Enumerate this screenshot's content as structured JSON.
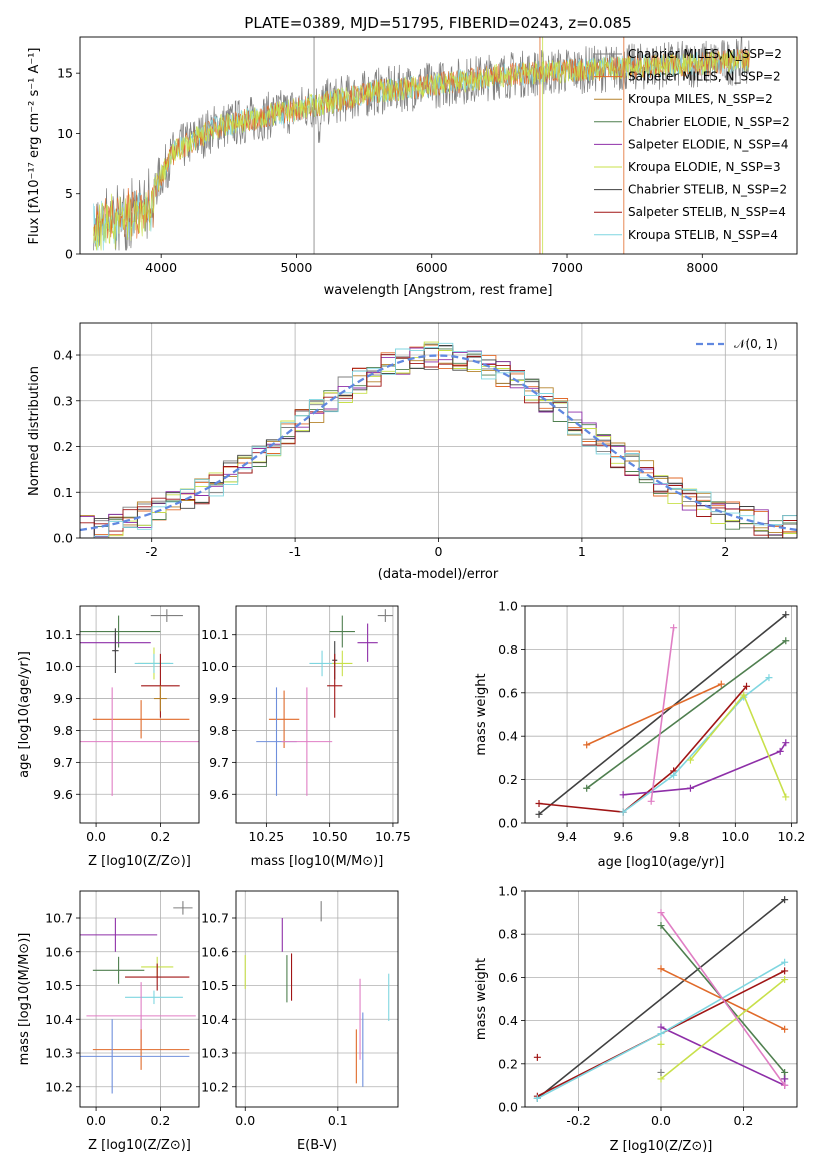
{
  "title": "PLATE=0389, MJD=51795, FIBERID=0243, z=0.085",
  "colors": {
    "chabrier_miles": "#7f7f7f",
    "salpeter_miles": "#e06a2a",
    "kroupa_miles": "#b5822b",
    "chabrier_elodie": "#4f7f4f",
    "salpeter_elodie": "#8e2fa8",
    "kroupa_elodie": "#c8e04a",
    "chabrier_stelib": "#404040",
    "salpeter_stelib": "#a01515",
    "kroupa_stelib": "#7fd6e0",
    "extra_blue": "#6f8fdc",
    "extra_pink": "#e07ec4"
  },
  "legend_spectrum": [
    "Chabrier MILES, N_SSP=2",
    "Salpeter MILES, N_SSP=2",
    "Kroupa MILES, N_SSP=2",
    "Chabrier ELODIE, N_SSP=2",
    "Salpeter ELODIE, N_SSP=4",
    "Kroupa ELODIE, N_SSP=3",
    "Chabrier STELIB, N_SSP=2",
    "Salpeter STELIB, N_SSP=4",
    "Kroupa STELIB, N_SSP=4"
  ],
  "chart_data": [
    {
      "id": "spectrum",
      "type": "line",
      "xlabel": "wavelength [Angstrom, rest frame]",
      "ylabel": "Flux [fλ10⁻¹⁷ erg cm⁻² s⁻¹ A⁻¹]",
      "xlim": [
        3400,
        8700
      ],
      "ylim": [
        0,
        18
      ],
      "xticks": [
        4000,
        5000,
        6000,
        7000,
        8000
      ],
      "yticks": [
        0,
        5,
        10,
        15
      ],
      "continuum": [
        [
          3500,
          3.5
        ],
        [
          3700,
          4.5
        ],
        [
          3950,
          5.5
        ],
        [
          4100,
          8.5
        ],
        [
          4400,
          10.5
        ],
        [
          4800,
          11.5
        ],
        [
          5200,
          12.5
        ],
        [
          5600,
          13.5
        ],
        [
          6000,
          14.0
        ],
        [
          6500,
          14.8
        ],
        [
          7000,
          15.2
        ],
        [
          7500,
          15.5
        ],
        [
          8000,
          15.8
        ],
        [
          8300,
          16.0
        ]
      ],
      "grid": false
    },
    {
      "id": "residuals",
      "type": "line",
      "xlabel": "(data-model)/error",
      "ylabel": "Normed distribution",
      "xlim": [
        -2.5,
        2.5
      ],
      "ylim": [
        0,
        0.47
      ],
      "xticks": [
        -2,
        -1,
        0,
        1,
        2
      ],
      "yticks": [
        0.0,
        0.1,
        0.2,
        0.3,
        0.4
      ],
      "legend": "𝒩(0, 1)",
      "grid": true
    },
    {
      "id": "z_age",
      "type": "scatter",
      "xlabel": "Z [log10(Z/Z⊙)]",
      "ylabel": "age  [log10(age/yr)]",
      "xlim": [
        -0.05,
        0.32
      ],
      "ylim": [
        9.51,
        10.19
      ],
      "xticks": [
        0.0,
        0.2
      ],
      "yticks": [
        9.6,
        9.7,
        9.8,
        9.9,
        10.0,
        10.1
      ],
      "points": [
        {
          "c": "chabrier_miles",
          "x": 0.22,
          "y": 10.16,
          "ex": 0.05,
          "ey": 0.02
        },
        {
          "c": "chabrier_elodie",
          "x": 0.07,
          "y": 10.11,
          "ex": 0.13,
          "ey": 0.05
        },
        {
          "c": "salpeter_elodie",
          "x": 0.06,
          "y": 10.075,
          "ex": 0.11,
          "ey": 0.03
        },
        {
          "c": "kroupa_elodie",
          "x": 0.18,
          "y": 10.01,
          "ex": 0.05,
          "ey": 0.05
        },
        {
          "c": "kroupa_stelib",
          "x": 0.18,
          "y": 10.01,
          "ex": 0.06,
          "ey": 0.03
        },
        {
          "c": "chabrier_stelib",
          "x": 0.06,
          "y": 10.05,
          "ex": 0.01,
          "ey": 0.07
        },
        {
          "c": "salpeter_stelib",
          "x": 0.2,
          "y": 9.94,
          "ex": 0.06,
          "ey": 0.1
        },
        {
          "c": "salpeter_miles",
          "x": 0.14,
          "y": 9.835,
          "ex": 0.15,
          "ey": 0.06
        },
        {
          "c": "extra_pink",
          "x": 0.05,
          "y": 9.765,
          "ex": 0.28,
          "ey": 0.17
        },
        {
          "c": "kroupa_miles",
          "x": 0.2,
          "y": 9.9,
          "ex": 0.02,
          "ey": 0.04
        }
      ],
      "grid": true
    },
    {
      "id": "mass_age",
      "type": "scatter",
      "xlabel": "mass [log10(M/M⊙)]",
      "ylabel": "",
      "xlim": [
        10.13,
        10.77
      ],
      "ylim": [
        9.51,
        10.19
      ],
      "xticks": [
        10.25,
        10.5,
        10.75
      ],
      "yticks": [
        9.6,
        9.7,
        9.8,
        9.9,
        10.0,
        10.1
      ],
      "points": [
        {
          "c": "chabrier_miles",
          "x": 10.72,
          "y": 10.16,
          "ex": 0.03,
          "ey": 0.02
        },
        {
          "c": "chabrier_elodie",
          "x": 10.55,
          "y": 10.11,
          "ex": 0.05,
          "ey": 0.05
        },
        {
          "c": "salpeter_elodie",
          "x": 10.65,
          "y": 10.075,
          "ex": 0.04,
          "ey": 0.06
        },
        {
          "c": "kroupa_stelib",
          "x": 10.47,
          "y": 10.01,
          "ex": 0.05,
          "ey": 0.04
        },
        {
          "c": "kroupa_elodie",
          "x": 10.55,
          "y": 10.01,
          "ex": 0.04,
          "ey": 0.04
        },
        {
          "c": "chabrier_stelib",
          "x": 10.52,
          "y": 10.02,
          "ex": 0.01,
          "ey": 0.06
        },
        {
          "c": "salpeter_stelib",
          "x": 10.52,
          "y": 9.94,
          "ex": 0.03,
          "ey": 0.1
        },
        {
          "c": "salpeter_miles",
          "x": 10.32,
          "y": 9.835,
          "ex": 0.06,
          "ey": 0.09
        },
        {
          "c": "extra_blue",
          "x": 10.29,
          "y": 9.765,
          "ex": 0.08,
          "ey": 0.17
        },
        {
          "c": "extra_pink",
          "x": 10.41,
          "y": 9.765,
          "ex": 0.1,
          "ey": 0.17
        }
      ],
      "grid": true
    },
    {
      "id": "age_weight",
      "type": "line",
      "xlabel": "age  [log10(age/yr)]",
      "ylabel": "mass weight",
      "xlim": [
        9.25,
        10.22
      ],
      "ylim": [
        0,
        1.0
      ],
      "xticks": [
        9.4,
        9.6,
        9.8,
        10.0,
        10.2
      ],
      "yticks": [
        0.0,
        0.2,
        0.4,
        0.6,
        0.8,
        1.0
      ],
      "series": [
        {
          "c": "chabrier_stelib",
          "x": [
            9.3,
            10.18
          ],
          "y": [
            0.04,
            0.96
          ]
        },
        {
          "c": "chabrier_elodie",
          "x": [
            9.47,
            10.18
          ],
          "y": [
            0.16,
            0.84
          ]
        },
        {
          "c": "salpeter_miles",
          "x": [
            9.47,
            9.95
          ],
          "y": [
            0.36,
            0.64
          ]
        },
        {
          "c": "salpeter_stelib",
          "x": [
            9.3,
            9.6,
            9.78,
            10.04
          ],
          "y": [
            0.09,
            0.05,
            0.24,
            0.63
          ]
        },
        {
          "c": "salpeter_elodie",
          "x": [
            9.6,
            9.84,
            10.16,
            10.18
          ],
          "y": [
            0.13,
            0.16,
            0.33,
            0.37
          ]
        },
        {
          "c": "kroupa_stelib",
          "x": [
            9.6,
            9.78,
            10.03,
            10.12
          ],
          "y": [
            0.05,
            0.22,
            0.58,
            0.67
          ]
        },
        {
          "c": "kroupa_elodie",
          "x": [
            9.84,
            10.03,
            10.18
          ],
          "y": [
            0.29,
            0.59,
            0.12
          ]
        },
        {
          "c": "extra_pink",
          "x": [
            9.7,
            9.78
          ],
          "y": [
            0.1,
            0.9
          ]
        }
      ],
      "grid": true
    },
    {
      "id": "z_mass",
      "type": "scatter",
      "xlabel": "Z [log10(Z/Z⊙)]",
      "ylabel": "mass [log10(M/M⊙)]",
      "xlim": [
        -0.05,
        0.32
      ],
      "ylim": [
        10.14,
        10.78
      ],
      "xticks": [
        0.0,
        0.2
      ],
      "yticks": [
        10.2,
        10.3,
        10.4,
        10.5,
        10.6,
        10.7
      ],
      "points": [
        {
          "c": "chabrier_miles",
          "x": 0.27,
          "y": 10.73,
          "ex": 0.03,
          "ey": 0.02
        },
        {
          "c": "salpeter_elodie",
          "x": 0.06,
          "y": 10.65,
          "ex": 0.13,
          "ey": 0.05
        },
        {
          "c": "chabrier_elodie",
          "x": 0.07,
          "y": 10.545,
          "ex": 0.08,
          "ey": 0.04
        },
        {
          "c": "kroupa_elodie",
          "x": 0.19,
          "y": 10.555,
          "ex": 0.05,
          "ey": 0.03
        },
        {
          "c": "salpeter_stelib",
          "x": 0.19,
          "y": 10.525,
          "ex": 0.1,
          "ey": 0.04
        },
        {
          "c": "kroupa_stelib",
          "x": 0.18,
          "y": 10.465,
          "ex": 0.09,
          "ey": 0.02
        },
        {
          "c": "extra_pink",
          "x": 0.14,
          "y": 10.41,
          "ex": 0.17,
          "ey": 0.1
        },
        {
          "c": "salpeter_miles",
          "x": 0.14,
          "y": 10.31,
          "ex": 0.15,
          "ey": 0.06
        },
        {
          "c": "extra_blue",
          "x": 0.05,
          "y": 10.29,
          "ex": 0.24,
          "ey": 0.11
        }
      ],
      "grid": true
    },
    {
      "id": "ebv_mass",
      "type": "scatter",
      "xlabel": "E(B-V)",
      "ylabel": "",
      "xlim": [
        -0.01,
        0.165
      ],
      "ylim": [
        10.14,
        10.78
      ],
      "xticks": [
        0.0,
        0.1
      ],
      "yticks": [
        10.2,
        10.3,
        10.4,
        10.5,
        10.6,
        10.7
      ],
      "points": [
        {
          "c": "chabrier_miles",
          "x": 0.082,
          "y": 10.72,
          "ex": 0,
          "ey": 0.03
        },
        {
          "c": "salpeter_elodie",
          "x": 0.04,
          "y": 10.65,
          "ex": 0,
          "ey": 0.05
        },
        {
          "c": "kroupa_elodie",
          "x": 0.0,
          "y": 10.54,
          "ex": 0,
          "ey": 0.05
        },
        {
          "c": "chabrier_elodie",
          "x": 0.045,
          "y": 10.52,
          "ex": 0,
          "ey": 0.07
        },
        {
          "c": "salpeter_stelib",
          "x": 0.05,
          "y": 10.525,
          "ex": 0,
          "ey": 0.07
        },
        {
          "c": "extra_pink",
          "x": 0.124,
          "y": 10.4,
          "ex": 0,
          "ey": 0.12
        },
        {
          "c": "salpeter_miles",
          "x": 0.12,
          "y": 10.29,
          "ex": 0,
          "ey": 0.08
        },
        {
          "c": "extra_blue",
          "x": 0.127,
          "y": 10.31,
          "ex": 0,
          "ey": 0.11
        },
        {
          "c": "kroupa_stelib",
          "x": 0.155,
          "y": 10.465,
          "ex": 0,
          "ey": 0.07
        }
      ],
      "grid": true
    },
    {
      "id": "z_weight",
      "type": "line",
      "xlabel": "Z [log10(Z/Z⊙)]",
      "ylabel": "mass weight",
      "xlim": [
        -0.33,
        0.33
      ],
      "ylim": [
        0,
        1.0
      ],
      "xticks": [
        -0.2,
        0.0,
        0.2
      ],
      "yticks": [
        0.0,
        0.2,
        0.4,
        0.6,
        0.8,
        1.0
      ],
      "series": [
        {
          "c": "chabrier_stelib",
          "x": [
            -0.3,
            0.3
          ],
          "y": [
            0.04,
            0.96
          ]
        },
        {
          "c": "chabrier_elodie",
          "x": [
            0.0,
            0.3,
            0.3
          ],
          "y": [
            0.84,
            0.16,
            0.13
          ]
        },
        {
          "c": "salpeter_miles",
          "x": [
            0.0,
            0.3
          ],
          "y": [
            0.64,
            0.36
          ]
        },
        {
          "c": "salpeter_stelib",
          "x": [
            -0.3,
            0.3
          ],
          "y": [
            0.05,
            0.63
          ]
        },
        {
          "c": "salpeter_elodie",
          "x": [
            0.0,
            0.3,
            0.3
          ],
          "y": [
            0.37,
            0.1,
            0.13
          ]
        },
        {
          "c": "kroupa_stelib",
          "x": [
            -0.3,
            0.0,
            0.3
          ],
          "y": [
            0.04,
            0.34,
            0.67
          ]
        },
        {
          "c": "kroupa_elodie",
          "x": [
            0.0,
            0.3
          ],
          "y": [
            0.13,
            0.59
          ]
        },
        {
          "c": "extra_pink",
          "x": [
            0.0,
            0.3
          ],
          "y": [
            0.9,
            0.1
          ]
        }
      ],
      "markers": [
        {
          "c": "salpeter_stelib",
          "x": -0.3,
          "y": 0.23
        },
        {
          "c": "kroupa_elodie",
          "x": 0.0,
          "y": 0.29
        },
        {
          "c": "chabrier_miles",
          "x": 0.0,
          "y": 0.16
        }
      ],
      "grid": true
    }
  ]
}
